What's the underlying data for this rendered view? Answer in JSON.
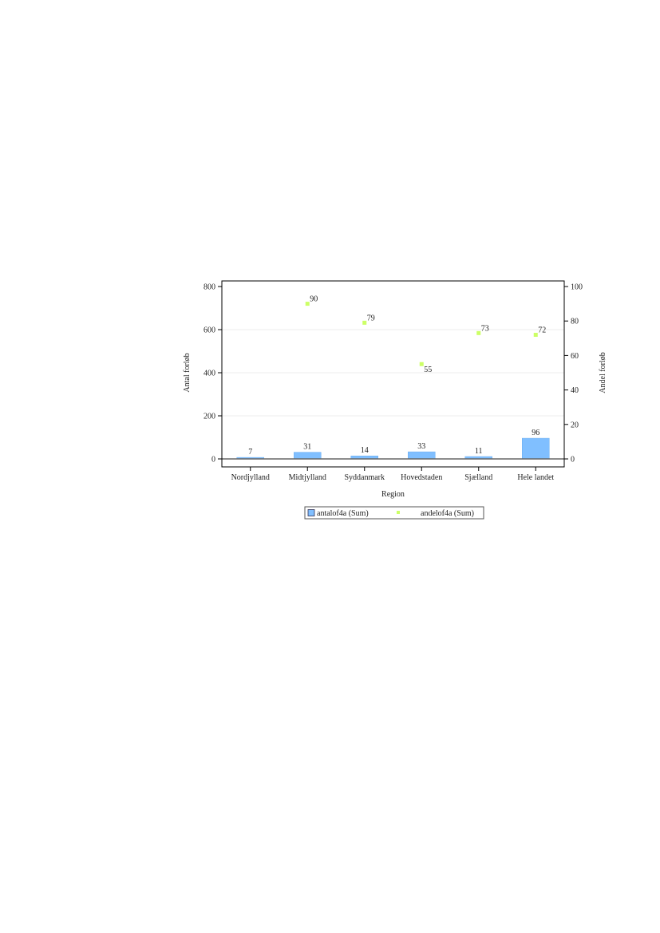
{
  "chart_data": {
    "type": "bar+scatter",
    "xlabel": "Region",
    "ylabel": "Antal forløb",
    "y2label": "Andel forløb",
    "categories": [
      "Nordjylland",
      "Midtjylland",
      "Syddanmark",
      "Hovedstaden",
      "Sjælland",
      "Hele landet"
    ],
    "ylim": [
      0,
      800
    ],
    "y2lim": [
      0,
      100
    ],
    "yticks": [
      0,
      200,
      400,
      600,
      800
    ],
    "y2ticks": [
      0,
      20,
      40,
      60,
      80,
      100
    ],
    "grid": true,
    "legend_position": "bottom",
    "series": [
      {
        "name": "antalof4a (Sum)",
        "type": "bar",
        "axis": "left",
        "color": "#80bfff",
        "values": [
          7,
          31,
          14,
          33,
          11,
          96
        ]
      },
      {
        "name": "andelof4a (Sum)",
        "type": "scatter",
        "axis": "right",
        "color": "#ccff66",
        "values": [
          null,
          90,
          79,
          55,
          73,
          72
        ]
      }
    ]
  }
}
